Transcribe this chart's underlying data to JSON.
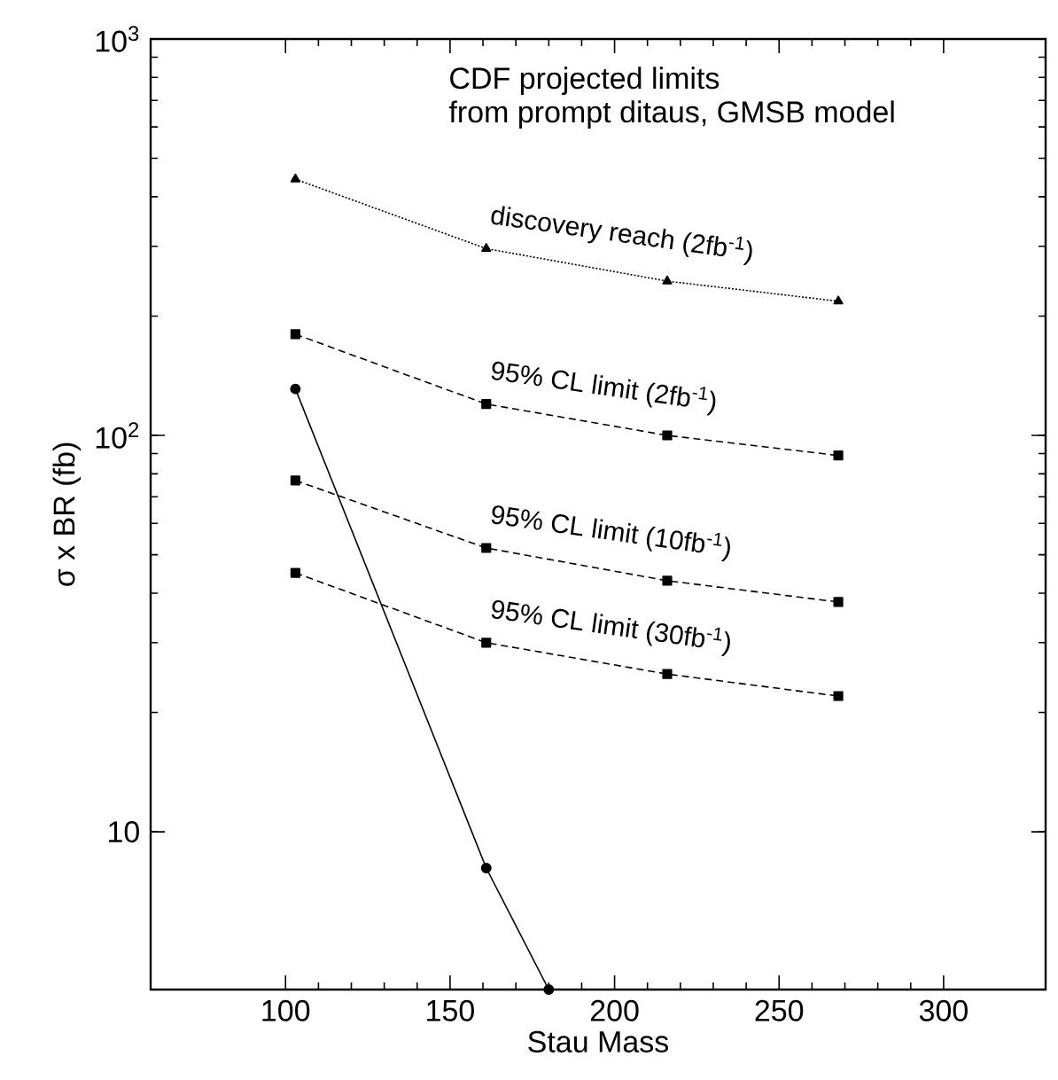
{
  "chart_data": {
    "type": "line",
    "xlabel": "Stau Mass",
    "ylabel": "σ x BR (fb)",
    "log": "y",
    "xlim": [
      59,
      331
    ],
    "xticks": [
      100,
      150,
      200,
      250,
      300
    ],
    "ylim": [
      4,
      1000
    ],
    "yticks": [
      10,
      {
        "value": 100,
        "label": "10$^{2}$"
      },
      {
        "value": 1000,
        "label": "10$^{3}$"
      }
    ],
    "grid": false,
    "series": [
      {
        "name": "discovery reach (2fb$^{-1}$)",
        "x": [
          103,
          161,
          216,
          268
        ],
        "values": [
          443,
          296,
          245,
          218
        ],
        "color": "#000000",
        "marker": "triangle",
        "line_style": "dotted"
      },
      {
        "name": "95% CL limit (2fb$^{-1}$)",
        "x": [
          103,
          161,
          216,
          268
        ],
        "values": [
          180,
          120,
          100,
          89
        ],
        "color": "#000000",
        "marker": "square",
        "line_style": "dashed"
      },
      {
        "name": "95% CL limit (10fb$^{-1}$)",
        "x": [
          103,
          161,
          216,
          268
        ],
        "values": [
          77,
          52,
          43,
          38
        ],
        "color": "#000000",
        "marker": "square",
        "line_style": "dashed"
      },
      {
        "name": "95% CL limit (30fb$^{-1}$)",
        "x": [
          103,
          161,
          216,
          268
        ],
        "values": [
          45,
          30,
          25,
          22
        ],
        "color": "#000000",
        "marker": "square",
        "line_style": "dashed"
      },
      {
        "x": [
          103,
          161,
          180
        ],
        "values": [
          131,
          8.1,
          4
        ],
        "color": "#000000",
        "marker": "circle",
        "line_style": "solid"
      }
    ],
    "annotations": [
      "CDF projected limits",
      "from prompt ditaus, GMSB model"
    ]
  }
}
